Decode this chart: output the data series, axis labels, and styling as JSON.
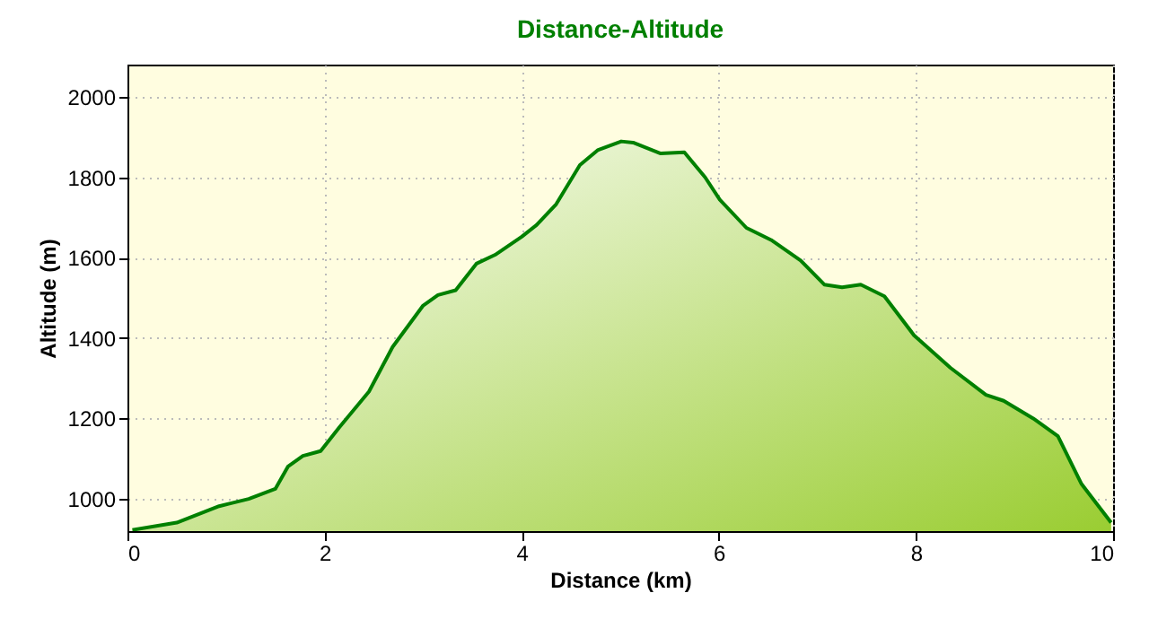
{
  "chart_data": {
    "type": "area",
    "title": "Distance-Altitude",
    "xlabel": "Distance (km)",
    "ylabel": "Altitude (m)",
    "xlim": [
      0,
      10
    ],
    "xticks": [
      0,
      2,
      4,
      6,
      8,
      10
    ],
    "ylim": [
      920,
      2080
    ],
    "yticks": [
      1000,
      1200,
      1400,
      1600,
      1800,
      2000
    ],
    "grid": true,
    "line_style": "solid",
    "series": [
      {
        "color": "#008000",
        "x": [
          0.05,
          0.5,
          0.93,
          1.23,
          1.5,
          1.63,
          1.78,
          1.96,
          2.15,
          2.45,
          2.69,
          3.0,
          3.15,
          3.33,
          3.54,
          3.73,
          4.0,
          4.15,
          4.35,
          4.59,
          4.77,
          5.01,
          5.13,
          5.41,
          5.65,
          5.86,
          6.01,
          6.28,
          6.53,
          6.83,
          7.07,
          7.25,
          7.44,
          7.68,
          7.98,
          8.35,
          8.71,
          8.89,
          9.19,
          9.44,
          9.68,
          9.98
        ],
        "values": [
          923,
          941,
          982,
          1000,
          1025,
          1081,
          1107,
          1119,
          1178,
          1267,
          1378,
          1481,
          1507,
          1519,
          1585,
          1607,
          1652,
          1681,
          1733,
          1830,
          1867,
          1889,
          1886,
          1859,
          1862,
          1800,
          1744,
          1674,
          1644,
          1593,
          1533,
          1526,
          1533,
          1504,
          1407,
          1326,
          1259,
          1244,
          1200,
          1156,
          1037,
          941
        ]
      }
    ]
  }
}
